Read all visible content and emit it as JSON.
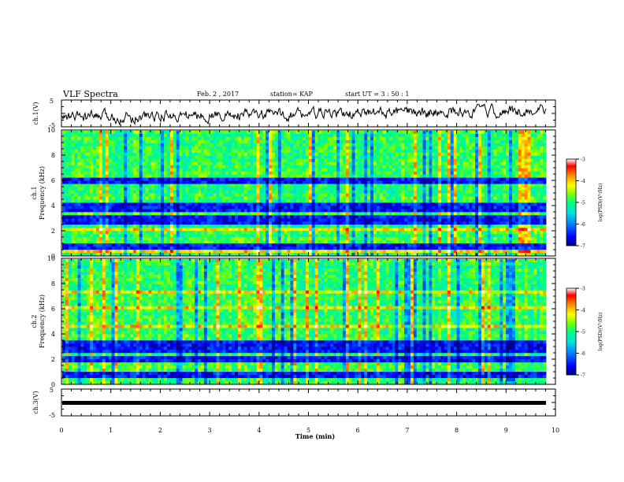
{
  "header": {
    "title": "VLF Spectra",
    "date": "Feb. 2 , 2017",
    "station": "station= KAP",
    "start": "start  UT =   3 : 50 : 1"
  },
  "chart_data": {
    "type": "heatmap",
    "xlabel": "Time  (min)",
    "x_ticks": [
      "0",
      "1",
      "2",
      "3",
      "4",
      "5",
      "6",
      "7",
      "8",
      "9",
      "10"
    ],
    "xlim": [
      0,
      10
    ],
    "panels": [
      {
        "id": "ch1-voltage",
        "kind": "line",
        "ylabel": "ch.1(V)",
        "ylim": [
          -5,
          5
        ],
        "y_ticks": [
          "5",
          "-5"
        ],
        "line_color": "#000000"
      },
      {
        "id": "ch1-spectrogram",
        "kind": "heatmap",
        "ylabel": "ch.1\nFrequency  (kHz)",
        "ylabel_top": "ch.1",
        "ylabel_main": "Frequency  (kHz)",
        "ylim": [
          0,
          10
        ],
        "y_ticks": [
          "0",
          "2",
          "4",
          "6",
          "8",
          "10"
        ],
        "dark_bands_khz": [
          [
            0.6,
            1.0
          ],
          [
            2.6,
            3.3
          ],
          [
            3.6,
            4.3
          ],
          [
            5.7,
            6.3
          ]
        ],
        "bright_bands_khz": [
          [
            0.2,
            0.45
          ],
          [
            1.9,
            2.2
          ],
          [
            7.4,
            7.6
          ],
          [
            8.9,
            9.1
          ]
        ],
        "colorbar": {
          "label": "log(PSD)(V²/Hz)",
          "ticks": [
            "-3",
            "-4",
            "-5",
            "-6",
            "-7"
          ],
          "range": [
            -7,
            -3
          ]
        }
      },
      {
        "id": "ch2-spectrogram",
        "kind": "heatmap",
        "ylabel": "ch.2\nFrequency  (kHz)",
        "ylabel_top": "ch.2",
        "ylabel_main": "Frequency  (kHz)",
        "ylim": [
          0,
          10
        ],
        "y_ticks": [
          "0",
          "2",
          "4",
          "6",
          "8",
          "10"
        ],
        "dark_bands_khz": [
          [
            0.4,
            0.9
          ],
          [
            1.7,
            2.2
          ],
          [
            2.6,
            3.4
          ]
        ],
        "bright_bands_khz": [
          [
            0.15,
            0.35
          ],
          [
            4.6,
            4.8
          ],
          [
            6.0,
            6.2
          ],
          [
            7.2,
            7.4
          ]
        ],
        "colorbar": {
          "label": "log(PSD)(V²/Hz)",
          "ticks": [
            "-3",
            "-4",
            "-5",
            "-6",
            "-7"
          ],
          "range": [
            -7,
            -3
          ]
        }
      },
      {
        "id": "ch3-voltage",
        "kind": "line",
        "ylabel": "ch.3(V)",
        "ylim": [
          -5,
          5
        ],
        "y_ticks": [
          "5",
          "-5"
        ],
        "constant_value": 0,
        "line_color": "#000000"
      }
    ],
    "colormap": [
      "#000080",
      "#0000ff",
      "#0080ff",
      "#00e0e0",
      "#00ff80",
      "#80ff00",
      "#ffff00",
      "#ff8000",
      "#ff0000",
      "#ffffff"
    ]
  }
}
